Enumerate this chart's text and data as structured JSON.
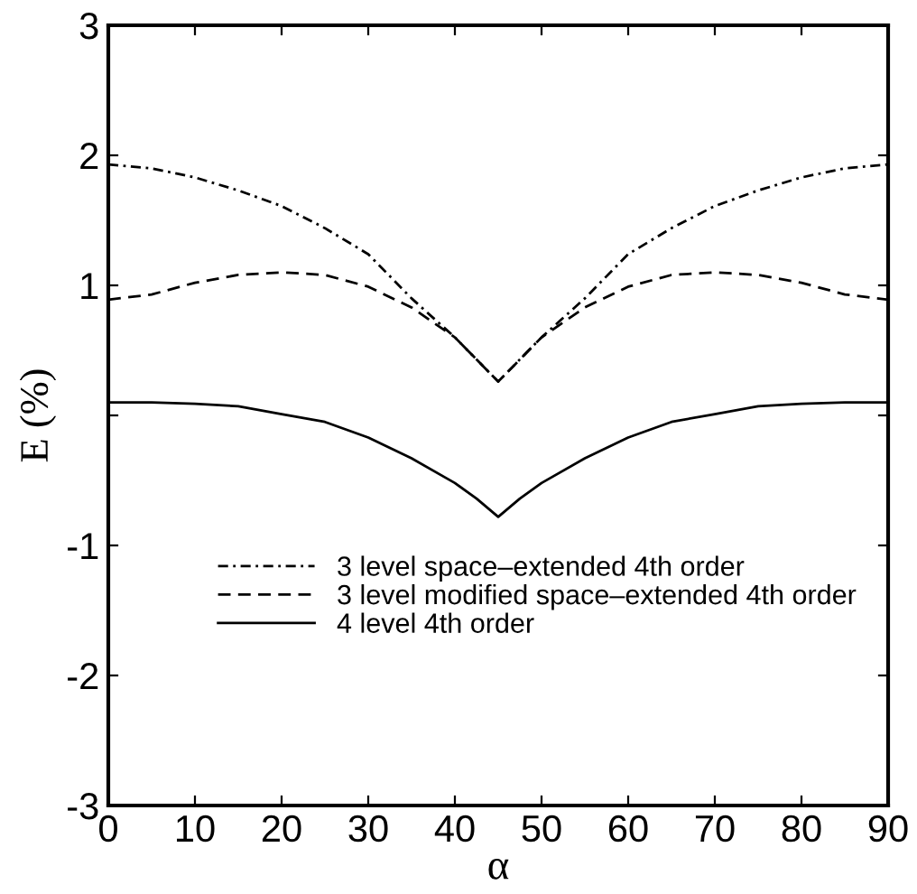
{
  "chart_data": {
    "type": "line",
    "xlabel": "α",
    "ylabel": "E (%)",
    "x": [
      0,
      5,
      10,
      15,
      20,
      25,
      30,
      35,
      40,
      42.5,
      45,
      47.5,
      50,
      55,
      60,
      65,
      70,
      75,
      80,
      85,
      90
    ],
    "series": [
      {
        "name": "3 level space–extended 4th order",
        "color": "#000000",
        "line_style": "dashdot",
        "values": [
          1.93,
          1.9,
          1.83,
          1.73,
          1.61,
          1.44,
          1.24,
          0.9,
          0.6,
          0.43,
          0.26,
          0.43,
          0.6,
          0.9,
          1.24,
          1.44,
          1.61,
          1.73,
          1.83,
          1.9,
          1.93
        ]
      },
      {
        "name": "3 level modified space–extended 4th order",
        "color": "#000000",
        "line_style": "dashed",
        "values": [
          0.89,
          0.93,
          1.02,
          1.08,
          1.1,
          1.08,
          0.99,
          0.83,
          0.6,
          0.43,
          0.26,
          0.43,
          0.6,
          0.83,
          0.99,
          1.08,
          1.1,
          1.08,
          1.02,
          0.93,
          0.89
        ]
      },
      {
        "name": "4 level 4th order",
        "color": "#000000",
        "line_style": "solid",
        "values": [
          0.1,
          0.1,
          0.09,
          0.07,
          0.01,
          -0.05,
          -0.17,
          -0.33,
          -0.52,
          -0.64,
          -0.78,
          -0.64,
          -0.52,
          -0.33,
          -0.17,
          -0.05,
          0.01,
          0.07,
          0.09,
          0.1,
          0.1
        ]
      }
    ],
    "xlim": [
      0,
      90
    ],
    "xticks": [
      0,
      10,
      20,
      30,
      40,
      50,
      60,
      70,
      80,
      90
    ],
    "ylim": [
      -3,
      3
    ],
    "yticks": [
      -3,
      -2,
      -1,
      {
        "value": 0,
        "label": null
      },
      1,
      2,
      3
    ],
    "grid": false,
    "legend": "bottom",
    "marker": "none"
  }
}
